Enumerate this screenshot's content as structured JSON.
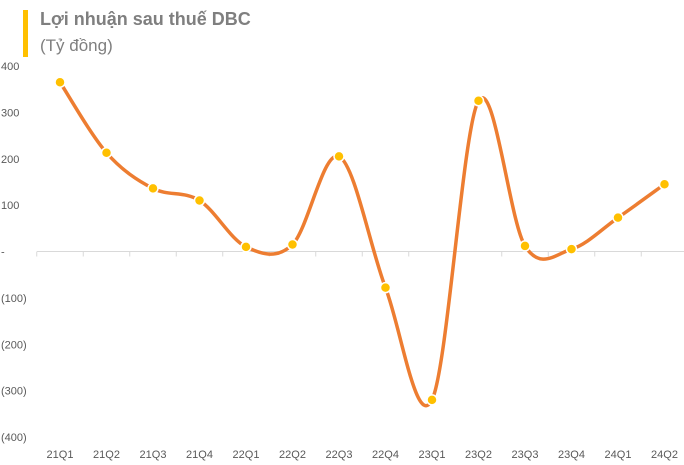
{
  "title": "Lợi nhuận sau thuế DBC",
  "subtitle": "(Tỷ đồng)",
  "colors": {
    "line": "#ed7d31",
    "marker": "#ffc000",
    "marker_edge": "#ffffff",
    "title_bar": "#ffc000",
    "axis": "#d9d9d9"
  },
  "chart_data": {
    "type": "line",
    "title": "Lợi nhuận sau thuế DBC",
    "ylabel": "(Tỷ đồng)",
    "xlabel": "",
    "smooth": true,
    "categories": [
      "21Q1",
      "21Q2",
      "21Q3",
      "21Q4",
      "22Q1",
      "22Q2",
      "22Q3",
      "22Q4",
      "23Q1",
      "23Q2",
      "23Q3",
      "23Q4",
      "24Q1",
      "24Q2"
    ],
    "series": [
      {
        "values": [
          365,
          213,
          136,
          110,
          10,
          15,
          205,
          -78,
          -320,
          325,
          12,
          5,
          73,
          145
        ]
      }
    ],
    "ylim": [
      -400,
      400
    ],
    "yticks": [
      400,
      300,
      200,
      100,
      0,
      -100,
      -200,
      -300,
      -400
    ],
    "ytick_labels": [
      "400",
      "300",
      "200",
      "100",
      "-",
      "(100)",
      "(200)",
      "(300)",
      "(400)"
    ],
    "grid": false,
    "legend": "none"
  }
}
